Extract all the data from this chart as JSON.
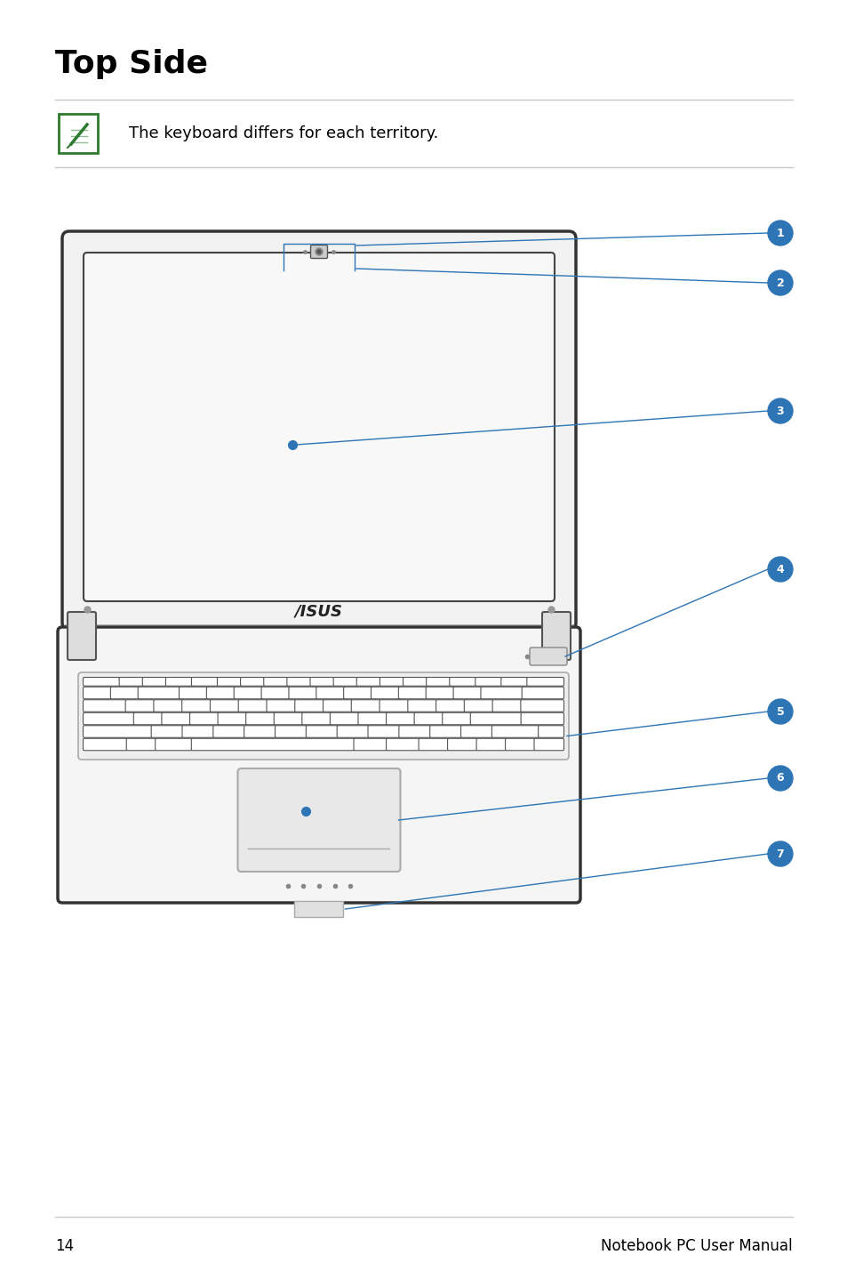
{
  "title": "Top Side",
  "note_text": "The keyboard differs for each territory.",
  "page_number": "14",
  "footer_text": "Notebook PC User Manual",
  "bg_color": "#ffffff",
  "title_color": "#000000",
  "callout_color": "#2e75b6",
  "label_text_color": "#ffffff",
  "note_icon_color": "#2e7a2e",
  "line_color": "#c8c8c8",
  "lid_outer_color": "#f2f2f2",
  "lid_border_color": "#333333",
  "screen_color": "#f8f8f8",
  "base_color": "#f5f5f5",
  "key_color": "#ffffff",
  "key_border": "#888888",
  "tp_color": "#e8e8e8",
  "hinge_color": "#dddddd"
}
